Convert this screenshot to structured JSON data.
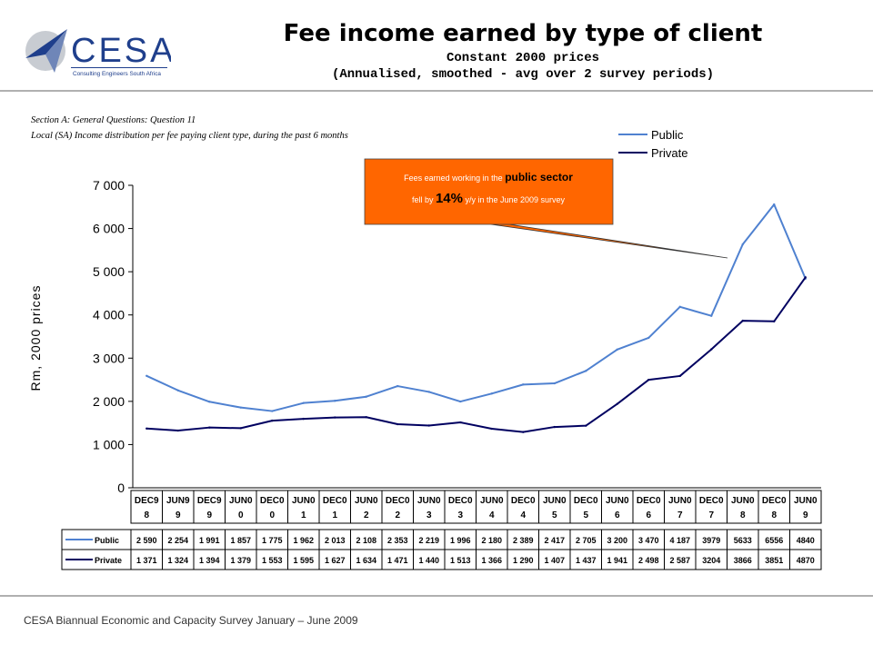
{
  "header": {
    "logo_text": "CESA",
    "logo_tagline": "Consulting Engineers South Africa",
    "title": "Fee income earned by type of client",
    "subtitle1": "Constant 2000 prices",
    "subtitle2": "(Annualised, smoothed - avg over 2 survey periods)"
  },
  "section": {
    "line1": "Section A: General Questions: Question 11",
    "line2": "Local (SA) Income distribution per fee paying client type, during the past 6 months"
  },
  "annotation": {
    "text_pre": "Fees earned working in the ",
    "text_bold": "public sector",
    "text_mid": "fell by ",
    "text_pct": "14%",
    "text_post": " y/y in the June 2009 survey"
  },
  "footer": "CESA Biannual Economic and Capacity Survey January – June 2009",
  "colors": {
    "public": "#4f81d0",
    "private": "#000060",
    "callout": "#ff6600"
  },
  "chart_data": {
    "type": "line",
    "title": "Fee income earned by type of client",
    "xlabel": "",
    "ylabel": "Rm, 2000 prices",
    "ylim": [
      0,
      7000
    ],
    "yticks": [
      0,
      1000,
      2000,
      3000,
      4000,
      5000,
      6000,
      7000
    ],
    "ytick_labels": [
      "0",
      "1 000",
      "2 000",
      "3 000",
      "4 000",
      "5 000",
      "6 000",
      "7 000"
    ],
    "legend_position": "top-right",
    "categories": [
      [
        "DEC9",
        "8"
      ],
      [
        "JUN9",
        "9"
      ],
      [
        "DEC9",
        "9"
      ],
      [
        "JUN0",
        "0"
      ],
      [
        "DEC0",
        "0"
      ],
      [
        "JUN0",
        "1"
      ],
      [
        "DEC0",
        "1"
      ],
      [
        "JUN0",
        "2"
      ],
      [
        "DEC0",
        "2"
      ],
      [
        "JUN0",
        "3"
      ],
      [
        "DEC0",
        "3"
      ],
      [
        "JUN0",
        "4"
      ],
      [
        "DEC0",
        "4"
      ],
      [
        "JUN0",
        "5"
      ],
      [
        "DEC0",
        "5"
      ],
      [
        "JUN0",
        "6"
      ],
      [
        "DEC0",
        "6"
      ],
      [
        "JUN0",
        "7"
      ],
      [
        "DEC0",
        "7"
      ],
      [
        "JUN0",
        "8"
      ],
      [
        "DEC0",
        "8"
      ],
      [
        "JUN0",
        "9"
      ]
    ],
    "series": [
      {
        "name": "Public",
        "values": [
          2590,
          2254,
          1991,
          1857,
          1775,
          1962,
          2013,
          2108,
          2353,
          2219,
          1996,
          2180,
          2389,
          2417,
          2705,
          3200,
          3470,
          4187,
          3979,
          5633,
          6556,
          4840
        ],
        "labels": [
          "2 590",
          "2 254",
          "1 991",
          "1 857",
          "1 775",
          "1 962",
          "2 013",
          "2 108",
          "2 353",
          "2 219",
          "1 996",
          "2 180",
          "2 389",
          "2 417",
          "2 705",
          "3 200",
          "3 470",
          "4 187",
          "3979",
          "5633",
          "6556",
          "4840"
        ]
      },
      {
        "name": "Private",
        "values": [
          1371,
          1324,
          1394,
          1379,
          1553,
          1595,
          1627,
          1634,
          1471,
          1440,
          1513,
          1366,
          1290,
          1407,
          1437,
          1941,
          2498,
          2587,
          3204,
          3866,
          3851,
          4870
        ],
        "labels": [
          "1 371",
          "1 324",
          "1 394",
          "1 379",
          "1 553",
          "1 595",
          "1 627",
          "1 634",
          "1 471",
          "1 440",
          "1 513",
          "1 366",
          "1 290",
          "1 407",
          "1 437",
          "1 941",
          "2 498",
          "2 587",
          "3204",
          "3866",
          "3851",
          "4870"
        ]
      }
    ]
  }
}
